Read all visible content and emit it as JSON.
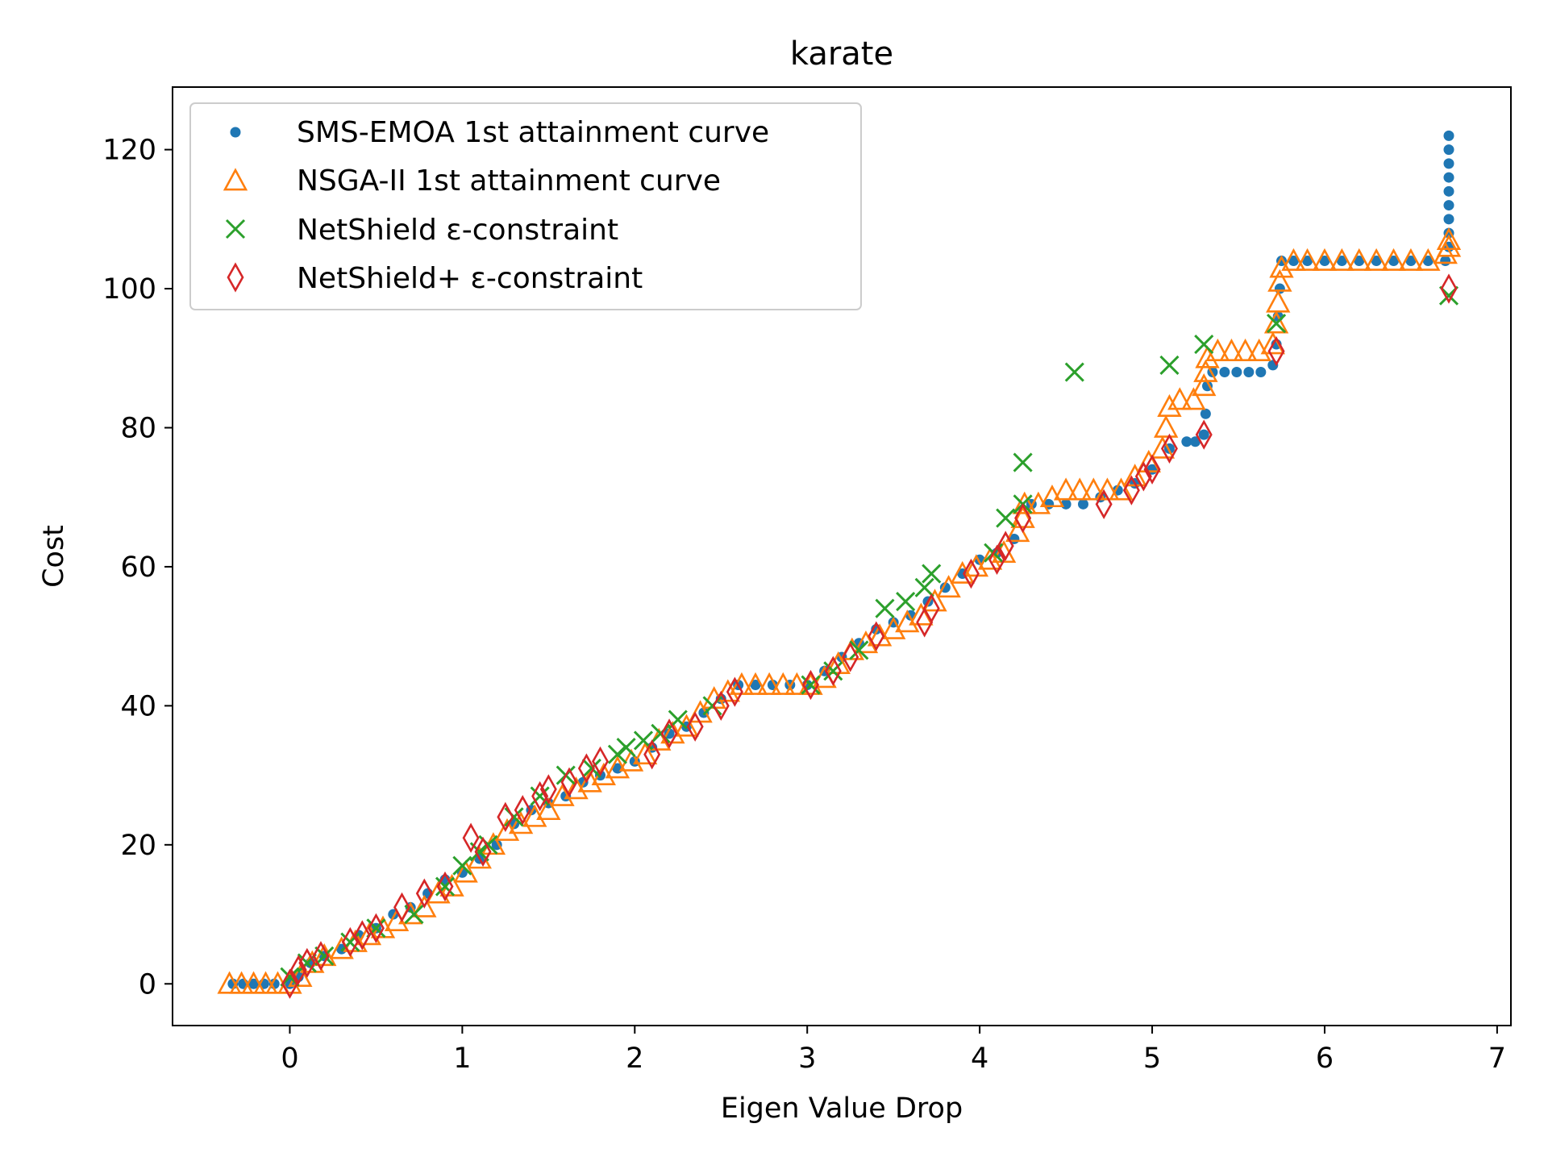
{
  "chart_data": {
    "type": "scatter",
    "title": "karate",
    "xlabel": "Eigen Value Drop",
    "ylabel": "Cost",
    "xlim": [
      -0.68,
      7.08
    ],
    "ylim": [
      -6,
      129
    ],
    "xticks": [
      0,
      1,
      2,
      3,
      4,
      5,
      6,
      7
    ],
    "yticks": [
      0,
      20,
      40,
      60,
      80,
      100,
      120
    ],
    "grid": false,
    "legend_position": "top-left",
    "series": [
      {
        "name": "SMS-EMOA 1st attainment curve",
        "marker": "dot",
        "color": "#1f77b4",
        "points": [
          [
            -0.33,
            0
          ],
          [
            -0.27,
            0
          ],
          [
            -0.21,
            0
          ],
          [
            -0.15,
            0
          ],
          [
            -0.09,
            0
          ],
          [
            0,
            0
          ],
          [
            0.05,
            1
          ],
          [
            0.12,
            3
          ],
          [
            0.2,
            4
          ],
          [
            0.3,
            5
          ],
          [
            0.4,
            7
          ],
          [
            0.5,
            8
          ],
          [
            0.6,
            10
          ],
          [
            0.7,
            11
          ],
          [
            0.8,
            13
          ],
          [
            0.9,
            15
          ],
          [
            1.0,
            16
          ],
          [
            1.1,
            18
          ],
          [
            1.2,
            20
          ],
          [
            1.3,
            23
          ],
          [
            1.4,
            25
          ],
          [
            1.5,
            26
          ],
          [
            1.6,
            27
          ],
          [
            1.7,
            29
          ],
          [
            1.8,
            30
          ],
          [
            1.9,
            31
          ],
          [
            2.0,
            32
          ],
          [
            2.1,
            34
          ],
          [
            2.2,
            36
          ],
          [
            2.3,
            37
          ],
          [
            2.4,
            39
          ],
          [
            2.5,
            41
          ],
          [
            2.6,
            43
          ],
          [
            2.7,
            43
          ],
          [
            2.8,
            43
          ],
          [
            2.9,
            43
          ],
          [
            3.0,
            43
          ],
          [
            3.1,
            45
          ],
          [
            3.2,
            47
          ],
          [
            3.3,
            49
          ],
          [
            3.4,
            51
          ],
          [
            3.5,
            52
          ],
          [
            3.6,
            53
          ],
          [
            3.7,
            55
          ],
          [
            3.8,
            57
          ],
          [
            3.9,
            59
          ],
          [
            4.0,
            61
          ],
          [
            4.1,
            62
          ],
          [
            4.2,
            64
          ],
          [
            4.3,
            69
          ],
          [
            4.4,
            69
          ],
          [
            4.5,
            69
          ],
          [
            4.6,
            69
          ],
          [
            4.7,
            70
          ],
          [
            4.8,
            71
          ],
          [
            4.9,
            72
          ],
          [
            5.0,
            74
          ],
          [
            5.1,
            77
          ],
          [
            5.2,
            78
          ],
          [
            5.25,
            78
          ],
          [
            5.3,
            79
          ],
          [
            5.31,
            82
          ],
          [
            5.32,
            86
          ],
          [
            5.35,
            88
          ],
          [
            5.42,
            88
          ],
          [
            5.49,
            88
          ],
          [
            5.56,
            88
          ],
          [
            5.63,
            88
          ],
          [
            5.7,
            89
          ],
          [
            5.72,
            92
          ],
          [
            5.73,
            96
          ],
          [
            5.74,
            100
          ],
          [
            5.75,
            104
          ],
          [
            5.82,
            104
          ],
          [
            5.9,
            104
          ],
          [
            6.0,
            104
          ],
          [
            6.1,
            104
          ],
          [
            6.2,
            104
          ],
          [
            6.3,
            104
          ],
          [
            6.4,
            104
          ],
          [
            6.5,
            104
          ],
          [
            6.6,
            104
          ],
          [
            6.7,
            104
          ],
          [
            6.72,
            106
          ],
          [
            6.72,
            108
          ],
          [
            6.72,
            110
          ],
          [
            6.72,
            112
          ],
          [
            6.72,
            114
          ],
          [
            6.72,
            116
          ],
          [
            6.72,
            118
          ],
          [
            6.72,
            120
          ],
          [
            6.72,
            122
          ]
        ]
      },
      {
        "name": "NSGA-II 1st attainment curve",
        "marker": "triangle",
        "color": "#ff7f0e",
        "points": [
          [
            -0.35,
            0
          ],
          [
            -0.28,
            0
          ],
          [
            -0.21,
            0
          ],
          [
            -0.14,
            0
          ],
          [
            -0.07,
            0
          ],
          [
            0,
            0
          ],
          [
            0.06,
            1
          ],
          [
            0.13,
            3
          ],
          [
            0.2,
            4
          ],
          [
            0.3,
            5
          ],
          [
            0.38,
            6
          ],
          [
            0.46,
            7
          ],
          [
            0.54,
            8
          ],
          [
            0.62,
            9
          ],
          [
            0.7,
            10
          ],
          [
            0.78,
            11
          ],
          [
            0.86,
            13
          ],
          [
            0.94,
            14
          ],
          [
            1.02,
            16
          ],
          [
            1.1,
            18
          ],
          [
            1.18,
            20
          ],
          [
            1.26,
            22
          ],
          [
            1.34,
            23
          ],
          [
            1.42,
            24
          ],
          [
            1.5,
            25
          ],
          [
            1.58,
            27
          ],
          [
            1.66,
            28
          ],
          [
            1.74,
            29
          ],
          [
            1.82,
            30
          ],
          [
            1.9,
            31
          ],
          [
            1.98,
            32
          ],
          [
            2.06,
            33
          ],
          [
            2.14,
            35
          ],
          [
            2.22,
            36
          ],
          [
            2.3,
            37
          ],
          [
            2.38,
            39
          ],
          [
            2.46,
            41
          ],
          [
            2.54,
            42
          ],
          [
            2.62,
            43
          ],
          [
            2.7,
            43
          ],
          [
            2.78,
            43
          ],
          [
            2.86,
            43
          ],
          [
            2.94,
            43
          ],
          [
            3.02,
            43
          ],
          [
            3.1,
            44
          ],
          [
            3.18,
            46
          ],
          [
            3.26,
            48
          ],
          [
            3.34,
            49
          ],
          [
            3.42,
            50
          ],
          [
            3.5,
            51
          ],
          [
            3.58,
            52
          ],
          [
            3.66,
            53
          ],
          [
            3.74,
            55
          ],
          [
            3.82,
            57
          ],
          [
            3.9,
            59
          ],
          [
            3.98,
            60
          ],
          [
            4.06,
            61
          ],
          [
            4.14,
            62
          ],
          [
            4.22,
            65
          ],
          [
            4.25,
            67
          ],
          [
            4.26,
            69
          ],
          [
            4.34,
            69
          ],
          [
            4.42,
            70
          ],
          [
            4.5,
            71
          ],
          [
            4.58,
            71
          ],
          [
            4.66,
            71
          ],
          [
            4.74,
            71
          ],
          [
            4.82,
            71
          ],
          [
            4.9,
            73
          ],
          [
            4.98,
            75
          ],
          [
            5.06,
            77
          ],
          [
            5.08,
            80
          ],
          [
            5.1,
            83
          ],
          [
            5.16,
            84
          ],
          [
            5.24,
            84
          ],
          [
            5.3,
            86
          ],
          [
            5.31,
            88
          ],
          [
            5.32,
            90
          ],
          [
            5.38,
            91
          ],
          [
            5.46,
            91
          ],
          [
            5.54,
            91
          ],
          [
            5.62,
            91
          ],
          [
            5.7,
            92
          ],
          [
            5.72,
            95
          ],
          [
            5.73,
            98
          ],
          [
            5.74,
            101
          ],
          [
            5.75,
            103
          ],
          [
            5.82,
            104
          ],
          [
            5.9,
            104
          ],
          [
            6.0,
            104
          ],
          [
            6.1,
            104
          ],
          [
            6.2,
            104
          ],
          [
            6.3,
            104
          ],
          [
            6.4,
            104
          ],
          [
            6.5,
            104
          ],
          [
            6.6,
            104
          ],
          [
            6.7,
            105
          ],
          [
            6.72,
            106
          ],
          [
            6.72,
            107
          ]
        ]
      },
      {
        "name": "NetShield ε-constraint",
        "marker": "x",
        "color": "#2ca02c",
        "points": [
          [
            0,
            1
          ],
          [
            0.1,
            3
          ],
          [
            0.2,
            4
          ],
          [
            0.35,
            6
          ],
          [
            0.5,
            8
          ],
          [
            0.72,
            10
          ],
          [
            0.9,
            14
          ],
          [
            1.0,
            17
          ],
          [
            1.1,
            19
          ],
          [
            1.15,
            20
          ],
          [
            1.3,
            24
          ],
          [
            1.45,
            27
          ],
          [
            1.6,
            30
          ],
          [
            1.75,
            31
          ],
          [
            1.9,
            33
          ],
          [
            1.95,
            34
          ],
          [
            2.05,
            35
          ],
          [
            2.15,
            36
          ],
          [
            2.25,
            38
          ],
          [
            2.45,
            40
          ],
          [
            3.02,
            43
          ],
          [
            3.15,
            45
          ],
          [
            3.3,
            48
          ],
          [
            3.45,
            54
          ],
          [
            3.57,
            55
          ],
          [
            3.68,
            57
          ],
          [
            3.72,
            59
          ],
          [
            4.08,
            62
          ],
          [
            4.15,
            67
          ],
          [
            4.25,
            75
          ],
          [
            4.25,
            69
          ],
          [
            4.55,
            88
          ],
          [
            5.1,
            89
          ],
          [
            5.3,
            92
          ],
          [
            5.72,
            95
          ],
          [
            6.72,
            99
          ]
        ]
      },
      {
        "name": "NetShield+ ε-constraint",
        "marker": "diamond",
        "color": "#d62728",
        "points": [
          [
            0,
            0
          ],
          [
            0.05,
            2
          ],
          [
            0.1,
            3
          ],
          [
            0.18,
            4
          ],
          [
            0.35,
            6
          ],
          [
            0.42,
            7
          ],
          [
            0.5,
            8
          ],
          [
            0.65,
            11
          ],
          [
            0.78,
            13
          ],
          [
            0.9,
            14
          ],
          [
            1.05,
            21
          ],
          [
            1.12,
            19
          ],
          [
            1.25,
            24
          ],
          [
            1.35,
            25
          ],
          [
            1.45,
            27
          ],
          [
            1.5,
            28
          ],
          [
            1.62,
            29
          ],
          [
            1.72,
            31
          ],
          [
            1.8,
            32
          ],
          [
            2.1,
            33
          ],
          [
            2.2,
            36
          ],
          [
            2.35,
            37
          ],
          [
            2.5,
            40
          ],
          [
            2.58,
            42
          ],
          [
            3.02,
            43
          ],
          [
            3.15,
            45
          ],
          [
            3.25,
            47
          ],
          [
            3.4,
            50
          ],
          [
            3.68,
            52
          ],
          [
            3.72,
            54
          ],
          [
            3.95,
            59
          ],
          [
            4.1,
            61
          ],
          [
            4.15,
            63
          ],
          [
            4.25,
            67
          ],
          [
            4.72,
            69
          ],
          [
            4.88,
            71
          ],
          [
            4.95,
            73
          ],
          [
            5.0,
            74
          ],
          [
            5.1,
            77
          ],
          [
            5.3,
            79
          ],
          [
            5.72,
            91
          ],
          [
            6.72,
            100
          ]
        ]
      }
    ]
  }
}
